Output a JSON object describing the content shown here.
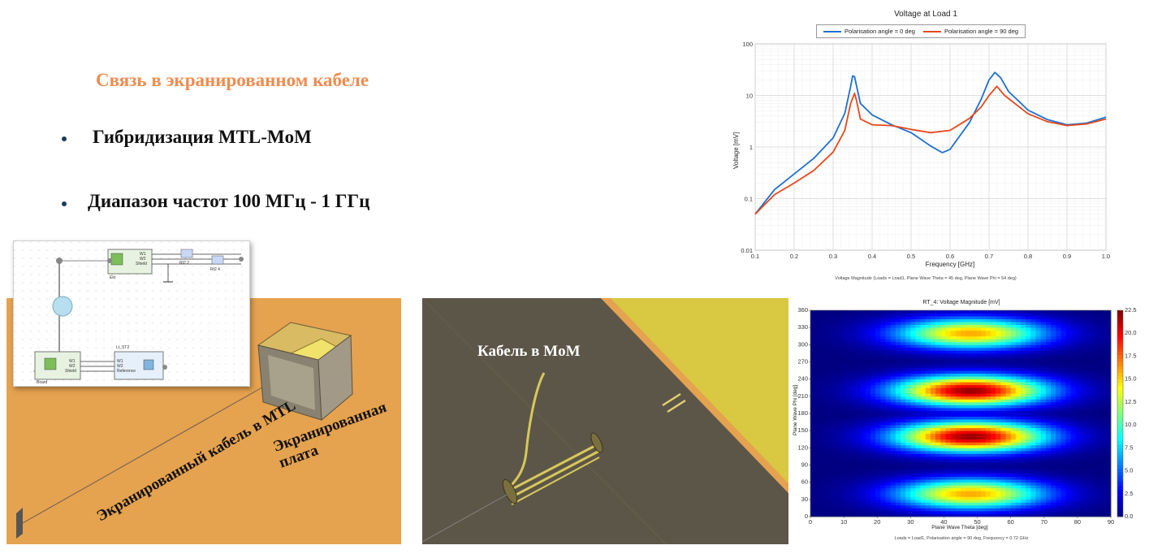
{
  "slide": {
    "title": "Связь в экранированном кабеле",
    "bullets": [
      "Гибридизация MTL-MoM",
      "Диапазон частот 100 МГц - 1 ГГц"
    ],
    "colors": {
      "title": "#F08C50",
      "board": "#E5A24F",
      "cable_zone": "#5C5649",
      "yellow_board": "#D9C842"
    }
  },
  "scene_mtl": {
    "cable_label": "Экранированный кабель в MTL",
    "board_label": "Экранированная плата"
  },
  "scene_mom": {
    "cable_label": "Кабель в MoM"
  },
  "schematic": {
    "block_top_left_label": "Ekt",
    "block_top_ports": [
      "W1",
      "W2",
      "Shield"
    ],
    "probe1": "Rt2 2",
    "probe2": "Rt2 4",
    "block_bottom_name": "Lt_ST2",
    "block_bottom_left_label": "Board",
    "block_bottom_ports_left": [
      "W1",
      "W2",
      "Shield"
    ],
    "block_bottom_ports_right": [
      "W1",
      "W2",
      "Reference"
    ]
  },
  "chart_data": [
    {
      "type": "line",
      "title": "Voltage at Load 1",
      "xlabel": "Frequency [GHz]",
      "ylabel": "Voltage [mV]",
      "yscale": "log",
      "xlim": [
        0.1,
        1.0
      ],
      "ylim": [
        0.01,
        100
      ],
      "x_ticks": [
        "0.1",
        "0.2",
        "0.3",
        "0.4",
        "0.5",
        "0.6",
        "0.7",
        "0.8",
        "0.9",
        "1.0"
      ],
      "y_ticks": [
        "0.01",
        "0.1",
        "1",
        "10",
        "100"
      ],
      "grid": true,
      "legend_position": "top",
      "series": [
        {
          "name": "Polarisation angle = 0 deg",
          "color": "#1f6fd1",
          "x": [
            0.1,
            0.15,
            0.2,
            0.25,
            0.3,
            0.33,
            0.345,
            0.35,
            0.355,
            0.37,
            0.4,
            0.45,
            0.5,
            0.55,
            0.58,
            0.6,
            0.65,
            0.68,
            0.7,
            0.715,
            0.73,
            0.75,
            0.8,
            0.85,
            0.9,
            0.95,
            1.0
          ],
          "y": [
            0.05,
            0.15,
            0.3,
            0.6,
            1.5,
            4.5,
            15,
            24,
            23,
            7,
            4.2,
            2.7,
            1.9,
            1.05,
            0.78,
            0.9,
            3.0,
            8.5,
            20,
            28,
            22,
            12,
            5.2,
            3.4,
            2.7,
            2.9,
            3.8
          ]
        },
        {
          "name": "Polarisation angle = 90 deg",
          "color": "#e8471a",
          "x": [
            0.1,
            0.15,
            0.2,
            0.25,
            0.3,
            0.33,
            0.345,
            0.355,
            0.36,
            0.37,
            0.4,
            0.45,
            0.5,
            0.55,
            0.6,
            0.65,
            0.68,
            0.7,
            0.72,
            0.74,
            0.8,
            0.85,
            0.9,
            0.95,
            1.0
          ],
          "y": [
            0.05,
            0.12,
            0.2,
            0.35,
            0.8,
            2.1,
            7,
            11,
            8,
            3.5,
            2.7,
            2.6,
            2.2,
            1.9,
            2.1,
            3.6,
            6,
            10,
            15,
            10,
            4.4,
            3.1,
            2.6,
            2.8,
            3.5
          ]
        }
      ],
      "footnote": "Voltage Magnitude (Loads = Load1, Plane Wave Theta = 45 deg, Plane Wave Phi = 54 deg)"
    },
    {
      "type": "heatmap",
      "title": "RT_4: Voltage Magnitude [mV]",
      "xlabel": "Plane Wave Theta [deg]",
      "ylabel": "Plane Wave Phi [deg]",
      "xlim": [
        0,
        90
      ],
      "ylim": [
        0,
        360
      ],
      "x_ticks": [
        "0",
        "10",
        "20",
        "30",
        "40",
        "50",
        "60",
        "70",
        "80",
        "90"
      ],
      "y_ticks": [
        "0",
        "30",
        "60",
        "90",
        "120",
        "150",
        "180",
        "210",
        "240",
        "270",
        "300",
        "330",
        "360"
      ],
      "colorbar_ticks": [
        "0.0",
        "2.5",
        "5.0",
        "7.5",
        "10.0",
        "12.5",
        "15.0",
        "17.5",
        "20.0",
        "22.5"
      ],
      "clim": [
        0,
        22.5
      ],
      "hotspots": [
        {
          "theta": 48,
          "phi": 40,
          "peak": 16
        },
        {
          "theta": 48,
          "phi": 140,
          "peak": 22
        },
        {
          "theta": 48,
          "phi": 220,
          "peak": 22
        },
        {
          "theta": 48,
          "phi": 320,
          "peak": 16
        }
      ],
      "footnote": "Loads = Load1, Polarisation angle = 90 deg, Frequency = 0.72 GHz"
    }
  ]
}
